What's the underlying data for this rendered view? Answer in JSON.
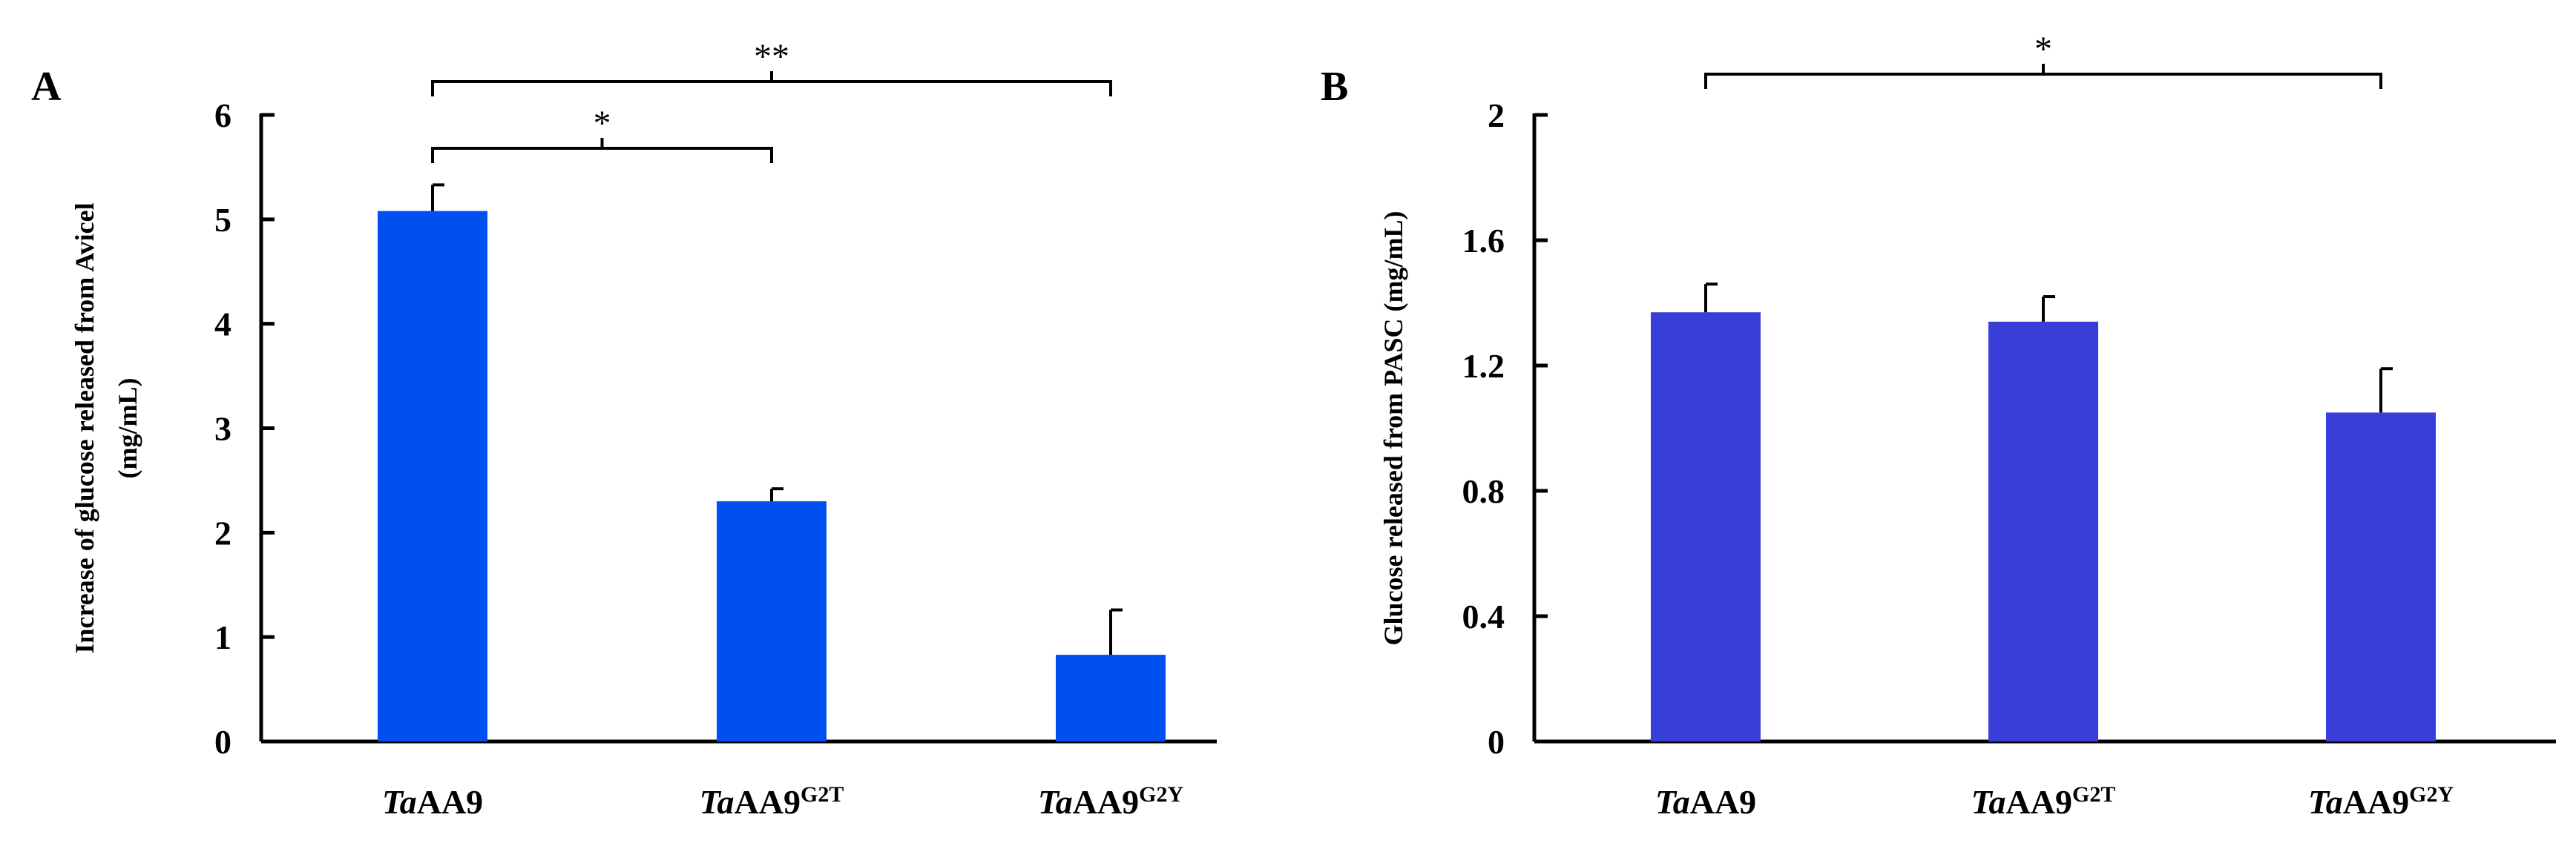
{
  "chart_data": [
    {
      "type": "bar",
      "panel_label": "A",
      "categories": [
        "TaAA9",
        "TaAA9G2T",
        "TaAA9G2Y"
      ],
      "category_labels": [
        {
          "italic": "Ta",
          "main": "AA9",
          "sup": ""
        },
        {
          "italic": "Ta",
          "main": "AA9",
          "sup": "G2T"
        },
        {
          "italic": "Ta",
          "main": "AA9",
          "sup": "G2Y"
        }
      ],
      "values": [
        5.08,
        2.3,
        0.83
      ],
      "errors": [
        0.25,
        0.12,
        0.43
      ],
      "ylabel_lines": [
        "Increase of glucose released from Avicel",
        "(mg/mL)"
      ],
      "xlabel": "",
      "ylim": [
        0,
        6
      ],
      "yticks": [
        0,
        1,
        2,
        3,
        4,
        5,
        6
      ],
      "ytick_labels": [
        "0",
        "1",
        "2",
        "3",
        "4",
        "5",
        "6"
      ],
      "bar_color": "#0050f0",
      "significance": [
        {
          "from": 0,
          "to": 1,
          "level": 1,
          "label": "*"
        },
        {
          "from": 0,
          "to": 2,
          "level": 2,
          "label": "**"
        }
      ],
      "grid": false
    },
    {
      "type": "bar",
      "panel_label": "B",
      "categories": [
        "TaAA9",
        "TaAA9G2T",
        "TaAA9G2Y"
      ],
      "category_labels": [
        {
          "italic": "Ta",
          "main": "AA9",
          "sup": ""
        },
        {
          "italic": "Ta",
          "main": "AA9",
          "sup": "G2T"
        },
        {
          "italic": "Ta",
          "main": "AA9",
          "sup": "G2Y"
        }
      ],
      "values": [
        1.37,
        1.34,
        1.05
      ],
      "errors": [
        0.09,
        0.08,
        0.14
      ],
      "ylabel_lines": [
        "Glucose released from PASC  (mg/mL)"
      ],
      "xlabel": "",
      "ylim": [
        0,
        2
      ],
      "yticks": [
        0,
        0.4,
        0.8,
        1.2,
        1.6,
        2
      ],
      "ytick_labels": [
        "0",
        "0.4",
        "0.8",
        "1.2",
        "1.6",
        "2"
      ],
      "bar_color": "#3a3ed8",
      "significance": [
        {
          "from": 0,
          "to": 2,
          "level": 1,
          "label": "*"
        }
      ],
      "grid": false
    }
  ]
}
